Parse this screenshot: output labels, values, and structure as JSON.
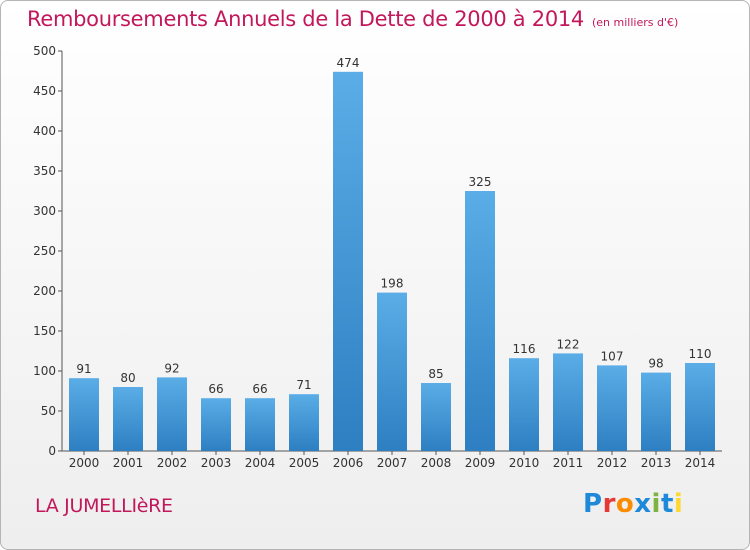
{
  "chart_data": {
    "type": "bar",
    "title": "Remboursements Annuels de la Dette de 2000 à 2014",
    "subtitle": "(en milliers d'€)",
    "categories": [
      "2000",
      "2001",
      "2002",
      "2003",
      "2004",
      "2005",
      "2006",
      "2007",
      "2008",
      "2009",
      "2010",
      "2011",
      "2012",
      "2013",
      "2014"
    ],
    "values": [
      91,
      80,
      92,
      66,
      66,
      71,
      474,
      198,
      85,
      325,
      116,
      122,
      107,
      98,
      110
    ],
    "ylim": [
      0,
      500
    ],
    "yticks": [
      0,
      50,
      100,
      150,
      200,
      250,
      300,
      350,
      400,
      450,
      500
    ],
    "grid": false,
    "bar_color_top": "#5aade6",
    "bar_color_bottom": "#2e7fc2"
  },
  "footer": {
    "commune": "LA JUMELLIèRE",
    "logo_text": "Proxiti",
    "logo_colors": [
      "#1e88d9",
      "#e53935",
      "#fb8c00",
      "#1e88d9",
      "#7cb342",
      "#1e88d9",
      "#fdd835"
    ]
  },
  "colors": {
    "accent": "#c2185b"
  }
}
